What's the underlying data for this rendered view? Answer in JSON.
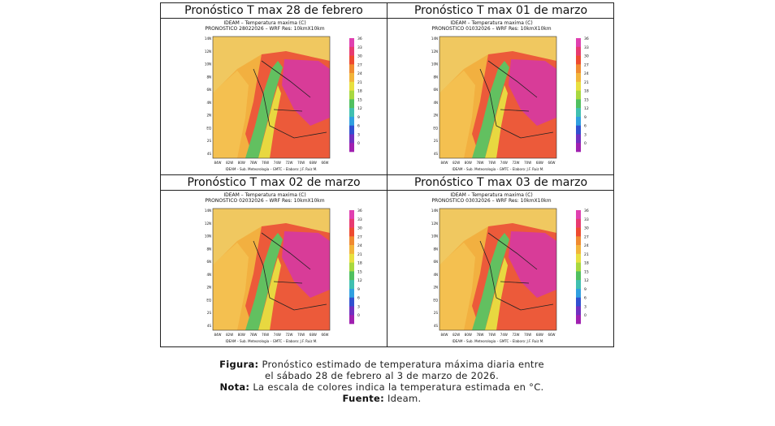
{
  "panels": [
    {
      "title": "Pronóstico T max 28 de febrero",
      "header": [
        "IDEAM – Temperatura maxima (C)",
        "PRONOSTICO 28022026 – WRF Res: 10kmX10km"
      ]
    },
    {
      "title": "Pronóstico T max 01 de marzo",
      "header": [
        "IDEAM – Temperatura maxima (C)",
        "PRONOSTICO 01032026 – WRF Res: 10kmX10km"
      ]
    },
    {
      "title": "Pronóstico T max 02 de marzo",
      "header": [
        "IDEAM – Temperatura maxima (C)",
        "PRONOSTICO 02032026 – WRF Res: 10kmX10km"
      ]
    },
    {
      "title": "Pronóstico T max 03 de marzo",
      "header": [
        "IDEAM – Temperatura maxima (C)",
        "PRONOSTICO 03032026 – WRF Res: 10kmX10km"
      ]
    }
  ],
  "map_footer": "IDEAM – Sub. Meteorologia – GMTC – Elaboro: J.F. Ruiz M.",
  "colorbar_labels": [
    "36",
    "33",
    "30",
    "27",
    "24",
    "21",
    "18",
    "15",
    "12",
    "9",
    "6",
    "3",
    "0"
  ],
  "lat_labels": [
    "14N",
    "12N",
    "10N",
    "8N",
    "6N",
    "4N",
    "2N",
    "EQ",
    "2S",
    "4S"
  ],
  "lon_labels": [
    "84W",
    "82W",
    "80W",
    "78W",
    "76W",
    "74W",
    "72W",
    "70W",
    "68W",
    "66W"
  ],
  "caption": {
    "figure_label": "Figura:",
    "figure_text": "Pronóstico estimado de temperatura máxima diaria entre",
    "figure_text_2": "el sábado 28 de febrero al 3 de marzo de 2026.",
    "note_label": "Nota:",
    "note_text": "La escala de colores indica la temperatura estimada en °C.",
    "source_label": "Fuente:",
    "source_text": "Ideam."
  }
}
